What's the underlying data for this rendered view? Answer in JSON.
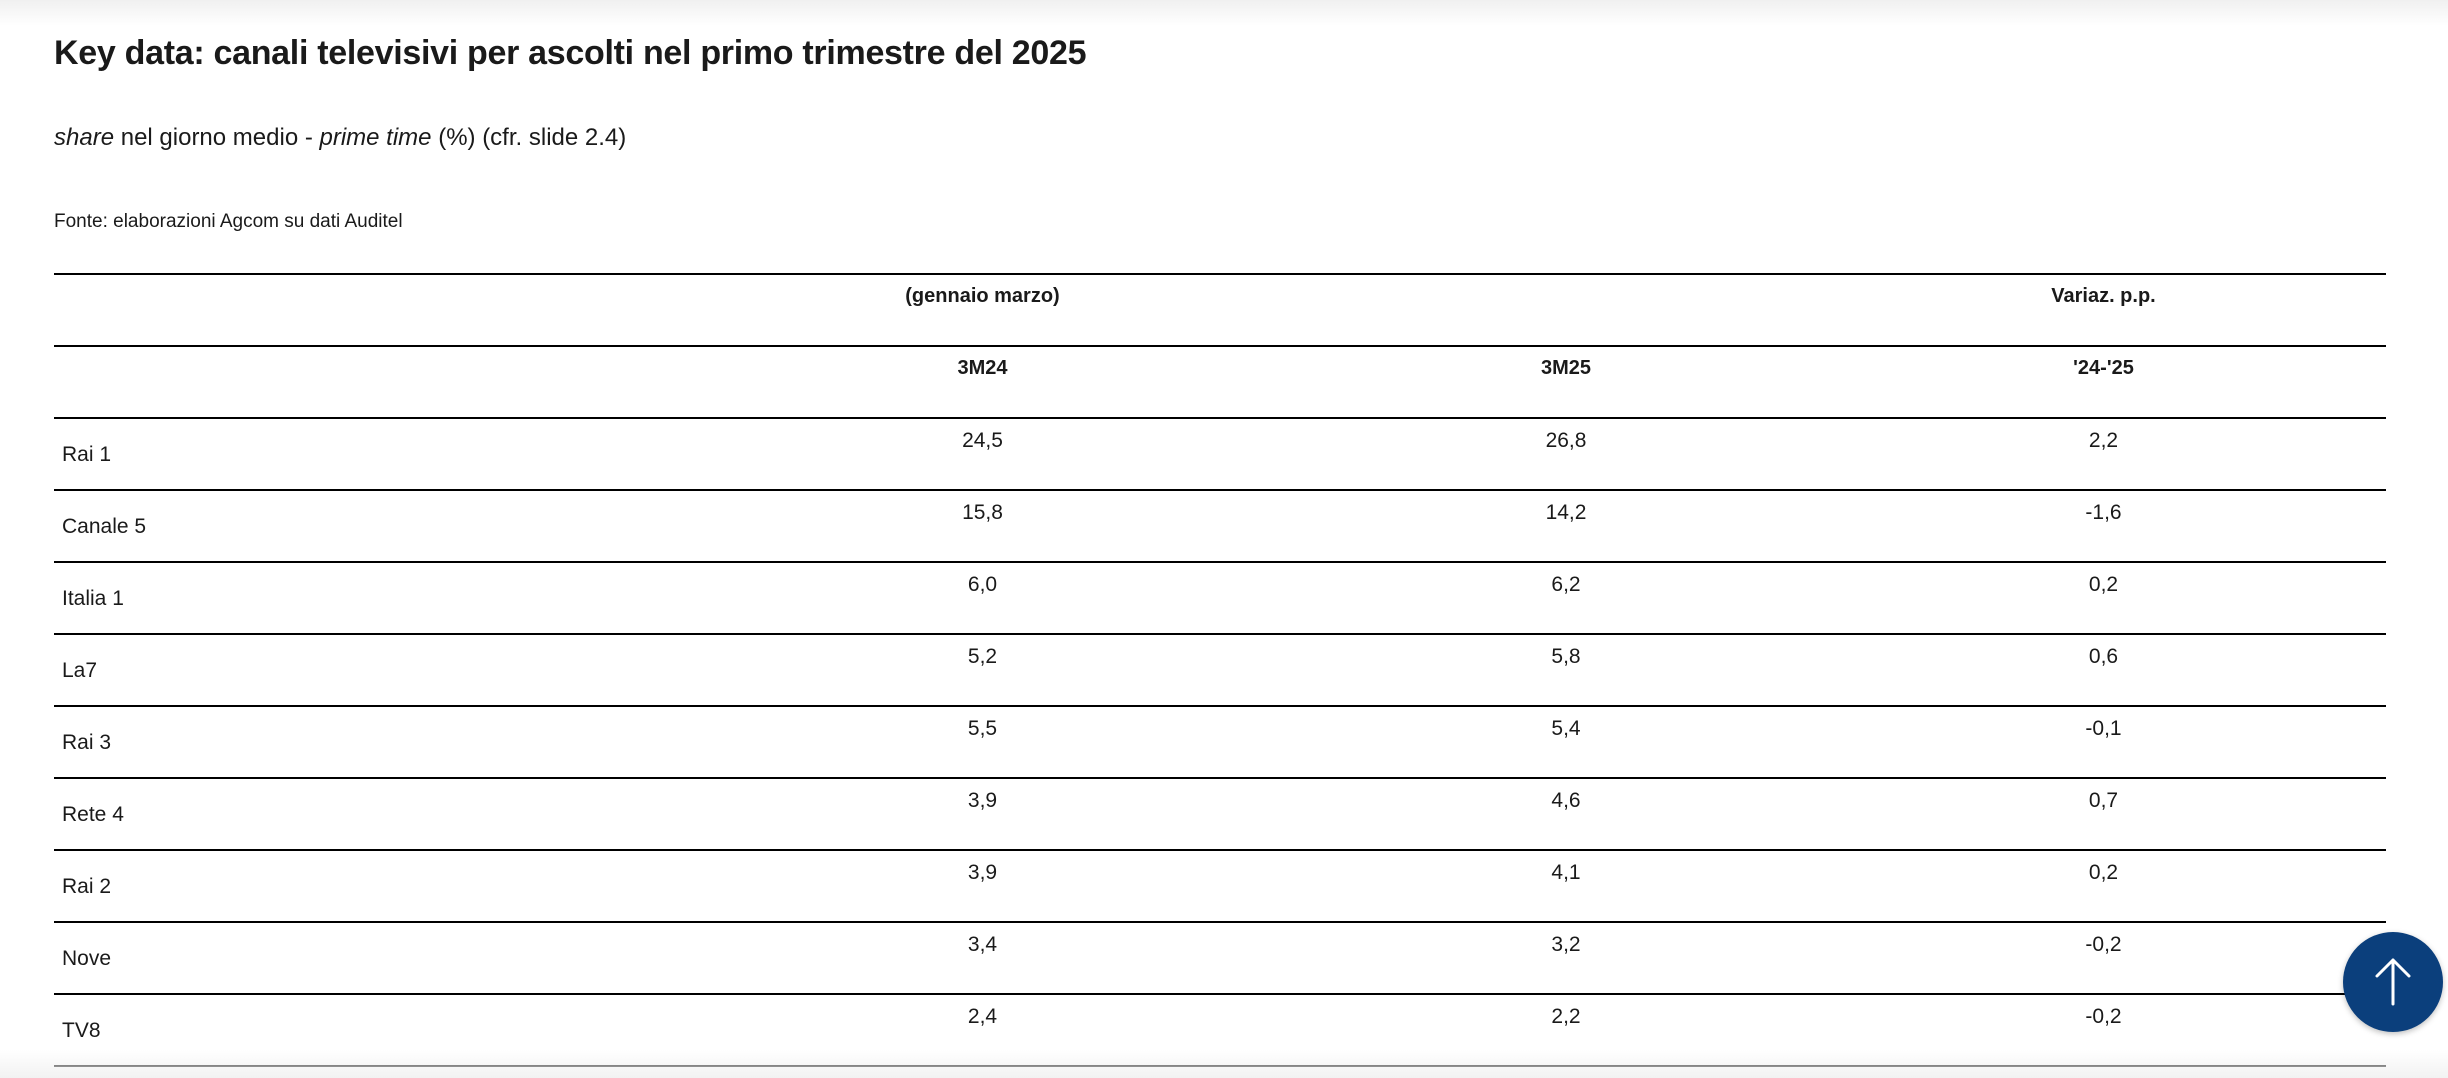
{
  "title": "Key data: canali televisivi per ascolti nel primo trimestre del 2025",
  "subtitle": {
    "italic1": "share",
    "text1": " nel giorno medio - ",
    "italic2": "prime time",
    "text2": " (%) (cfr. slide 2.4)"
  },
  "source": "Fonte: elaborazioni Agcom su dati Auditel",
  "table": {
    "header_row1": {
      "period": "(gennaio marzo)",
      "variation": "Variaz. p.p."
    },
    "header_row2": {
      "col1": "3M24",
      "col2": "3M25",
      "col3": "'24-'25"
    },
    "rows": [
      {
        "channel": "Rai 1",
        "m24": "24,5",
        "m25": "26,8",
        "var": "2,2"
      },
      {
        "channel": "Canale 5",
        "m24": "15,8",
        "m25": "14,2",
        "var": "-1,6"
      },
      {
        "channel": "Italia 1",
        "m24": "6,0",
        "m25": "6,2",
        "var": "0,2"
      },
      {
        "channel": "La7",
        "m24": "5,2",
        "m25": "5,8",
        "var": "0,6"
      },
      {
        "channel": "Rai 3",
        "m24": "5,5",
        "m25": "5,4",
        "var": "-0,1"
      },
      {
        "channel": "Rete 4",
        "m24": "3,9",
        "m25": "4,6",
        "var": "0,7"
      },
      {
        "channel": "Rai 2",
        "m24": "3,9",
        "m25": "4,1",
        "var": "0,2"
      },
      {
        "channel": "Nove",
        "m24": "3,4",
        "m25": "3,2",
        "var": "-0,2"
      },
      {
        "channel": "TV8",
        "m24": "2,4",
        "m25": "2,2",
        "var": "-0,2"
      }
    ]
  },
  "scroll_top_button": {
    "icon": "arrow-up-icon",
    "color": "#0b3f7c"
  }
}
